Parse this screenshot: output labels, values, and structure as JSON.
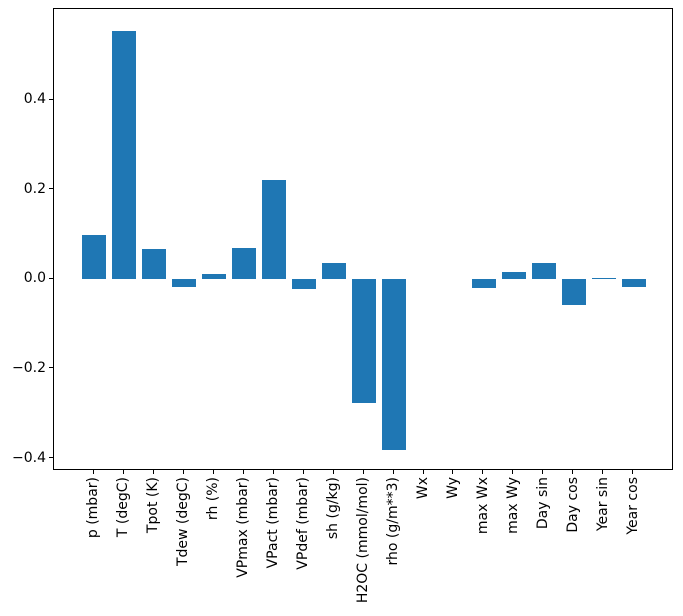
{
  "figure": {
    "background_color": "#ffffff",
    "bar_color": "#1f77b4",
    "spine_color": "#000000",
    "text_color": "#000000"
  },
  "chart_data": {
    "type": "bar",
    "title": "",
    "xlabel": "",
    "ylabel": "",
    "categories": [
      "p (mbar)",
      "T (degC)",
      "Tpot (K)",
      "Tdew (degC)",
      "rh (%)",
      "VPmax (mbar)",
      "VPact (mbar)",
      "VPdef (mbar)",
      "sh (g/kg)",
      "H2OC (mmol/mol)",
      "rho (g/m**3)",
      "Wx",
      "Wy",
      "max Wx",
      "max Wy",
      "Day sin",
      "Day cos",
      "Year sin",
      "Year cos"
    ],
    "values": [
      0.099,
      0.555,
      0.067,
      -0.017,
      0.013,
      0.071,
      0.223,
      -0.021,
      0.036,
      -0.276,
      -0.382,
      0.0,
      0.0,
      -0.019,
      0.017,
      0.036,
      -0.058,
      0.003,
      -0.017
    ],
    "yticks": [
      {
        "value": 0.4,
        "label": "0.4"
      },
      {
        "value": 0.2,
        "label": "0.2"
      },
      {
        "value": 0.0,
        "label": "0.0"
      },
      {
        "value": -0.2,
        "label": "−0.2"
      },
      {
        "value": -0.4,
        "label": "−0.4"
      }
    ],
    "ylim": [
      -0.428,
      0.604
    ],
    "xlim": [
      -1.34,
      19.34
    ],
    "bar_width": 0.8,
    "grid": false,
    "legend_position": "none",
    "xtick_label_rotation_deg": 90
  }
}
